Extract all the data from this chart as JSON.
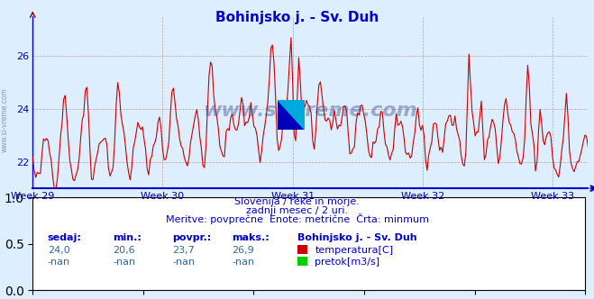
{
  "title": "Bohinjsko j. - Sv. Duh",
  "title_color": "#0000cc",
  "title_fontsize": 11,
  "bg_color": "#ddeeff",
  "plot_bg_color": "#ddeeff",
  "line_color": "#cc0000",
  "line_width": 0.8,
  "ylim": [
    21.0,
    27.5
  ],
  "yticks": [
    22,
    24,
    26
  ],
  "x_weeks": [
    "Week 29",
    "Week 30",
    "Week 31",
    "Week 32",
    "Week 33"
  ],
  "x_week_positions": [
    0,
    84,
    168,
    252,
    336
  ],
  "n_points": 360,
  "grid_color": "#cc9999",
  "grid_linestyle": "--",
  "grid_linewidth": 0.5,
  "axis_color": "#0000cc",
  "tick_color": "#0000aa",
  "tick_fontsize": 8,
  "subtitle1": "Slovenija / reke in morje.",
  "subtitle2": "zadnji mesec / 2 uri.",
  "subtitle3": "Meritve: povprečne  Enote: metrične  Črta: minmum",
  "subtitle_color": "#0000cc",
  "subtitle_fontsize": 8,
  "footer_label_color": "#0000cc",
  "footer_value_color": "#336699",
  "watermark": "www.si-vreme.com",
  "watermark_color": "#334488",
  "watermark_alpha": 0.4,
  "sedaj": "24,0",
  "min_val": "20,6",
  "povpr": "23,7",
  "maks": "26,9",
  "sedaj2": "-nan",
  "min_val2": "-nan",
  "povpr2": "-nan",
  "maks2": "-nan",
  "legend_station": "Bohinjsko j. - Sv. Duh",
  "legend_temp_color": "#cc0000",
  "legend_pretok_color": "#00cc00"
}
